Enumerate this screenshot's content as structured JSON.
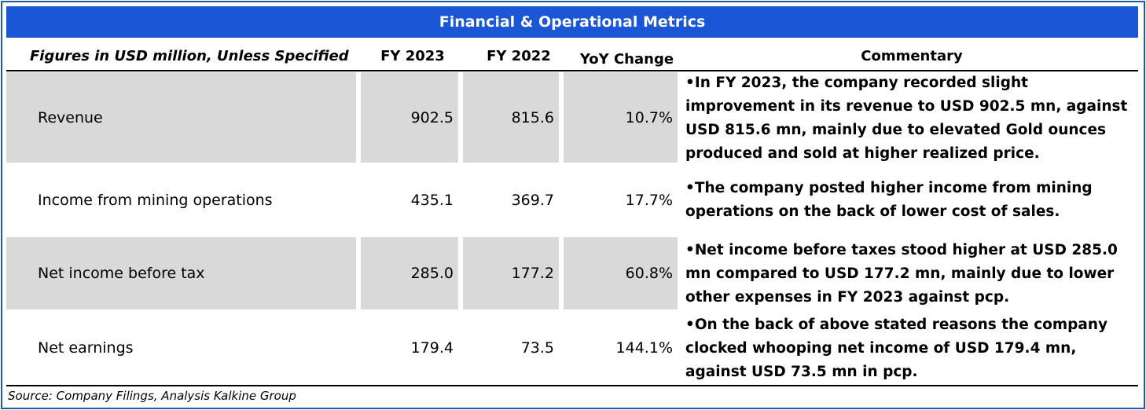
{
  "title": "Financial & Operational Metrics",
  "headers": {
    "label": "Figures in USD million, Unless Specified",
    "fy2023": "FY 2023",
    "fy2022": "FY 2022",
    "yoy": "YoY Change",
    "commentary": "Commentary"
  },
  "rows": [
    {
      "label": "Revenue",
      "fy2023": "902.5",
      "fy2022": "815.6",
      "yoy": "10.7%",
      "commentary": "•In FY 2023, the company recorded slight improvement in its revenue to USD 902.5 mn, against USD 815.6 mn, mainly due to elevated Gold ounces produced and sold at higher realized price."
    },
    {
      "label": "Income from mining operations",
      "fy2023": "435.1",
      "fy2022": "369.7",
      "yoy": "17.7%",
      "commentary": "•The company posted higher income from mining operations on the back of lower cost of sales."
    },
    {
      "label": "Net income before tax",
      "fy2023": "285.0",
      "fy2022": "177.2",
      "yoy": "60.8%",
      "commentary": "•Net income before taxes stood higher at USD 285.0 mn compared to USD 177.2 mn, mainly due to lower other expenses in FY 2023 against pcp."
    },
    {
      "label": "Net earnings",
      "fy2023": "179.4",
      "fy2022": "73.5",
      "yoy": "144.1%",
      "commentary": "•On the back of above stated reasons the company clocked whooping net income of USD 179.4 mn, against  USD 73.5 mn in pcp."
    }
  ],
  "source": "Source: Company Filings, Analysis Kalkine Group",
  "colors": {
    "title_bg": "#1a56d6",
    "title_text": "#ffffff",
    "row_shade": "#d9d9d9",
    "frame": "#1f5aa8"
  }
}
